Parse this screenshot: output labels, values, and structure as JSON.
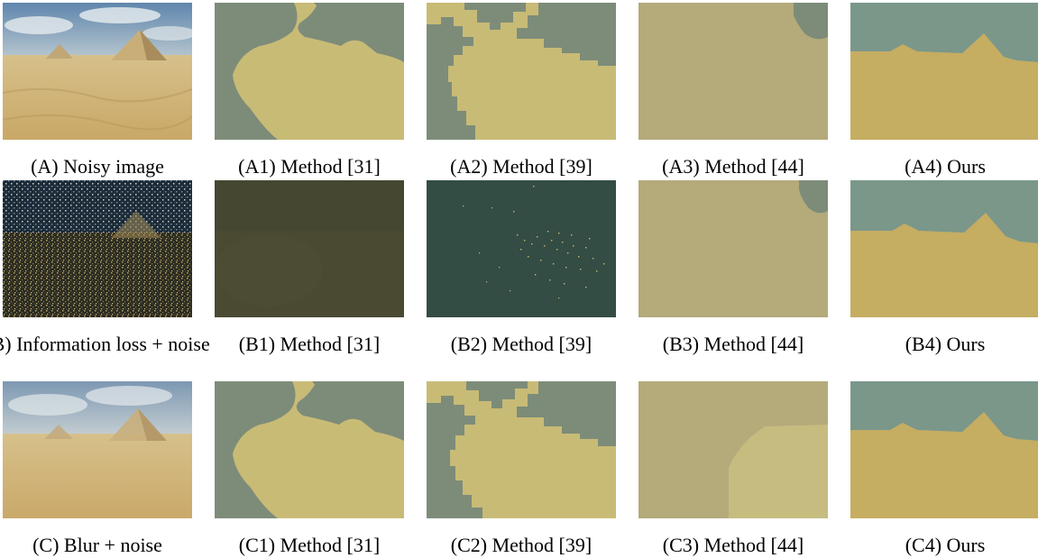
{
  "figure": {
    "rows": [
      {
        "id": "A",
        "cells": [
          {
            "caption": "(A) Noisy image",
            "kind": "photo-noisy"
          },
          {
            "caption": "(A1) Method [31]",
            "kind": "seg-m31"
          },
          {
            "caption": "(A2) Method [39]",
            "kind": "seg-m39"
          },
          {
            "caption": "(A3) Method [44]",
            "kind": "seg-m44-a"
          },
          {
            "caption": "(A4) Ours",
            "kind": "seg-ours"
          }
        ]
      },
      {
        "id": "B",
        "cells": [
          {
            "caption": "(B) Information loss + noise",
            "kind": "photo-info-loss"
          },
          {
            "caption": "(B1) Method [31]",
            "kind": "seg-m31-b"
          },
          {
            "caption": "(B2) Method [39]",
            "kind": "seg-m39-b"
          },
          {
            "caption": "(B3) Method [44]",
            "kind": "seg-m44-a"
          },
          {
            "caption": "(B4) Ours",
            "kind": "seg-ours"
          }
        ]
      },
      {
        "id": "C",
        "cells": [
          {
            "caption": "(C) Blur + noise",
            "kind": "photo-blur"
          },
          {
            "caption": "(C1) Method [31]",
            "kind": "seg-m31"
          },
          {
            "caption": "(C2) Method [39]",
            "kind": "seg-m39-c"
          },
          {
            "caption": "(C3) Method [44]",
            "kind": "seg-m44-c"
          },
          {
            "caption": "(C4) Ours",
            "kind": "seg-ours"
          }
        ]
      }
    ],
    "colors": {
      "sky": "#7d8c79",
      "sand": "#c8bb76",
      "ours_sky": "#7a978a",
      "ours_sand": "#c5ad62",
      "m44_region": "#b4aa7a",
      "m44_light": "#c7bc80",
      "dark_olive": "#4a4a33",
      "dark_teal": "#334c44"
    }
  }
}
